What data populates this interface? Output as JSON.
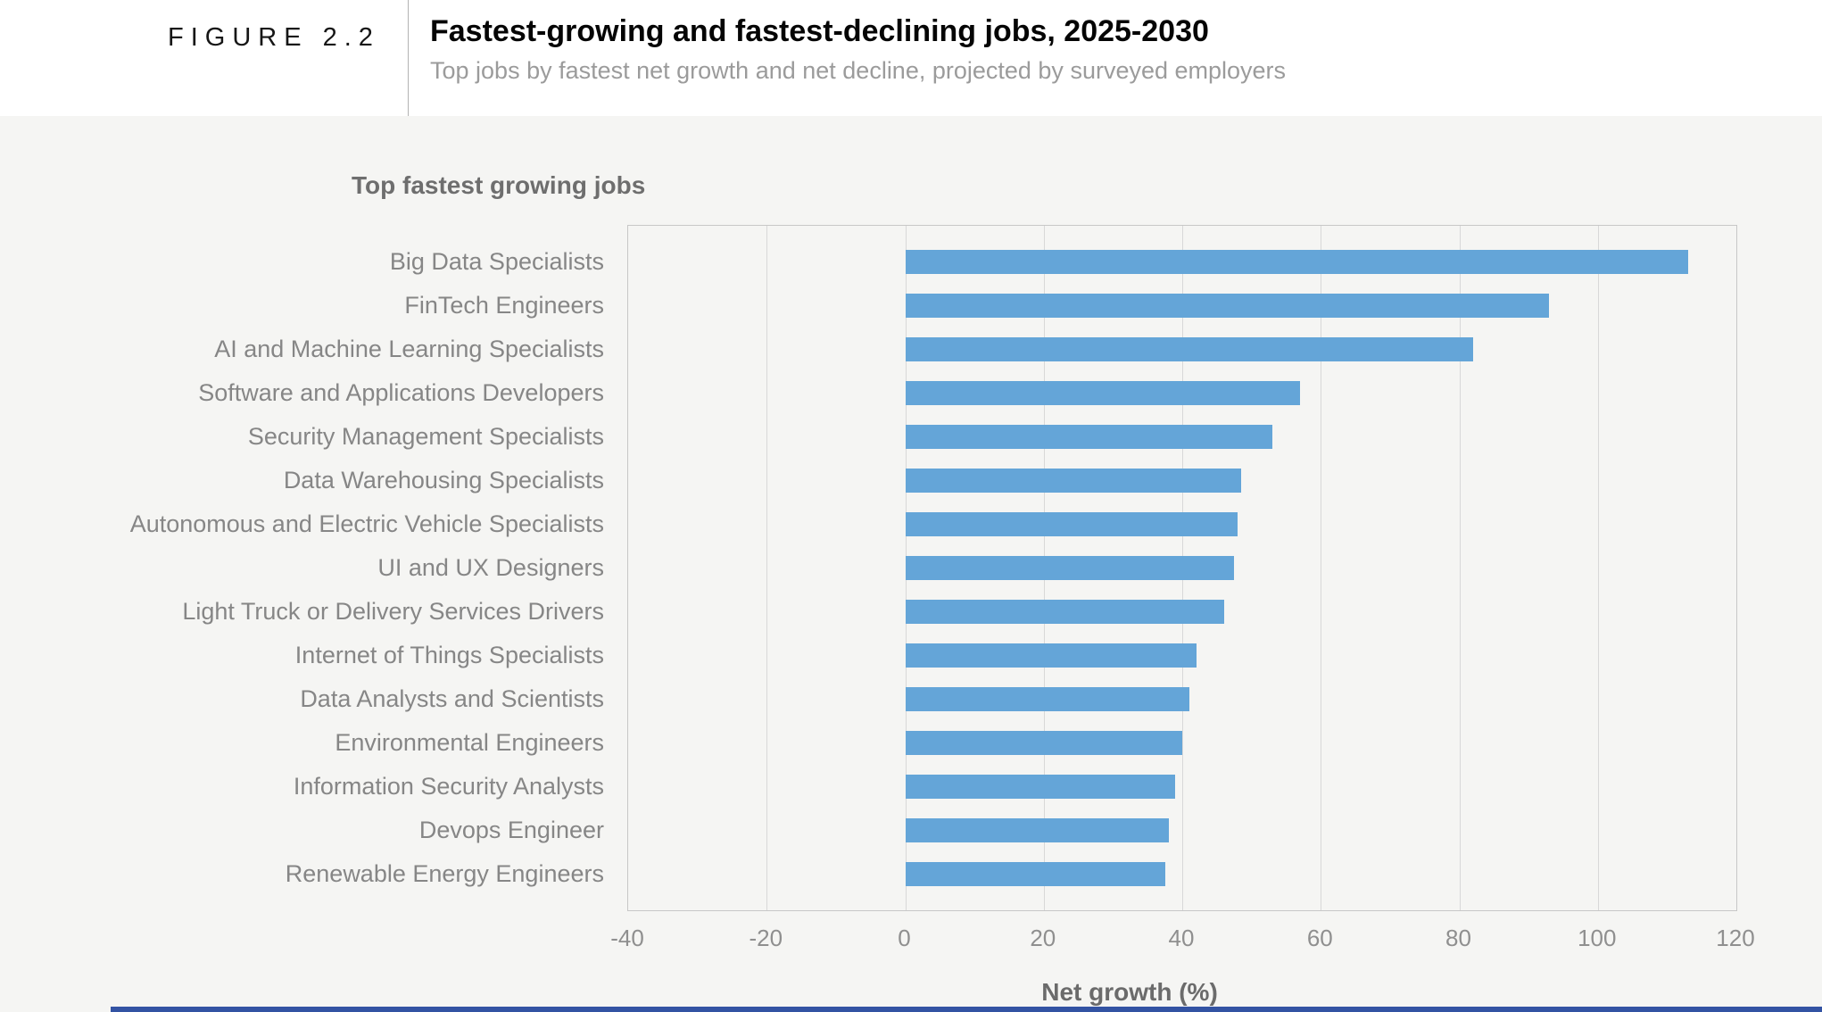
{
  "header": {
    "figure_label": "FIGURE 2.2",
    "title": "Fastest-growing and fastest-declining jobs, 2025-2030",
    "subtitle": "Top jobs by fastest net growth and net decline, projected by surveyed employers"
  },
  "colors": {
    "page_background": "#f5f5f3",
    "header_background": "#ffffff",
    "bar": "#64a5d8",
    "gridline": "#d8d8d8",
    "plot_border": "#c7c7c7",
    "footer_strip": "#3353a3"
  },
  "chart_data": {
    "type": "bar",
    "orientation": "horizontal",
    "panel_label": "Top fastest growing jobs",
    "categories": [
      "Big Data Specialists",
      "FinTech Engineers",
      "AI and Machine Learning Specialists",
      "Software and Applications Developers",
      "Security Management Specialists",
      "Data Warehousing Specialists",
      "Autonomous and Electric Vehicle Specialists",
      "UI and UX Designers",
      "Light Truck or Delivery Services Drivers",
      "Internet of Things Specialists",
      "Data Analysts and Scientists",
      "Environmental Engineers",
      "Information Security Analysts",
      "Devops Engineer",
      "Renewable Energy Engineers"
    ],
    "values": [
      113,
      93,
      82,
      57,
      53,
      48.5,
      48,
      47.5,
      46,
      42,
      41,
      40,
      39,
      38,
      37.5
    ],
    "xlabel": "Net growth (%)",
    "x_ticks": [
      -40,
      -20,
      0,
      20,
      40,
      60,
      80,
      100,
      120
    ],
    "xlim": [
      -40,
      120
    ],
    "grid": "vertical",
    "legend": "none"
  }
}
